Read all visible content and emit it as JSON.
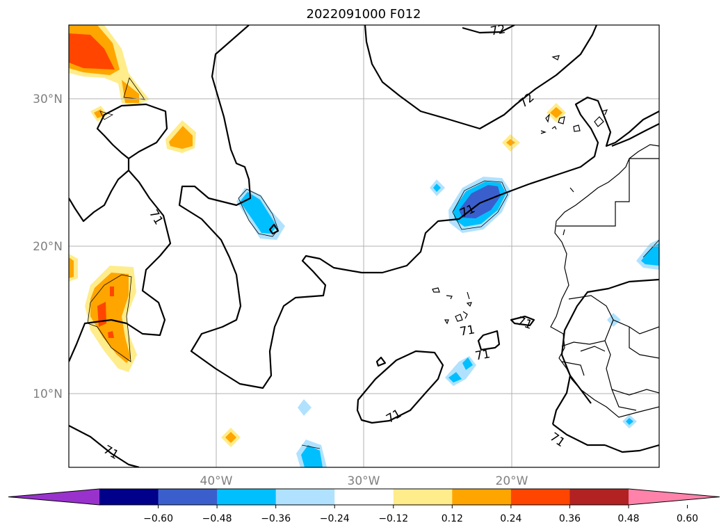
{
  "title": "2022091000 F012",
  "map": {
    "lat_labels": [
      "30°N",
      "20°N",
      "10°N"
    ],
    "lon_labels": [
      "40°W",
      "30°W",
      "20°W"
    ],
    "contour_label": "71",
    "contour_label_upper": "72"
  },
  "colorbar": {
    "colors": [
      "#9932cc",
      "#00008b",
      "#3a5fcd",
      "#00bfff",
      "#b0e2ff",
      "#ffffff",
      "#ffec8b",
      "#ffa500",
      "#ff4500",
      "#b22222",
      "#ff82ab"
    ],
    "tick_labels": [
      "−0.60",
      "−0.48",
      "−0.36",
      "−0.24",
      "−0.12",
      "0.12",
      "0.24",
      "0.36",
      "0.48",
      "0.60"
    ]
  },
  "colors": {
    "grid": "#b0b0b0",
    "coast": "#000000",
    "label_gray": "#808080"
  }
}
